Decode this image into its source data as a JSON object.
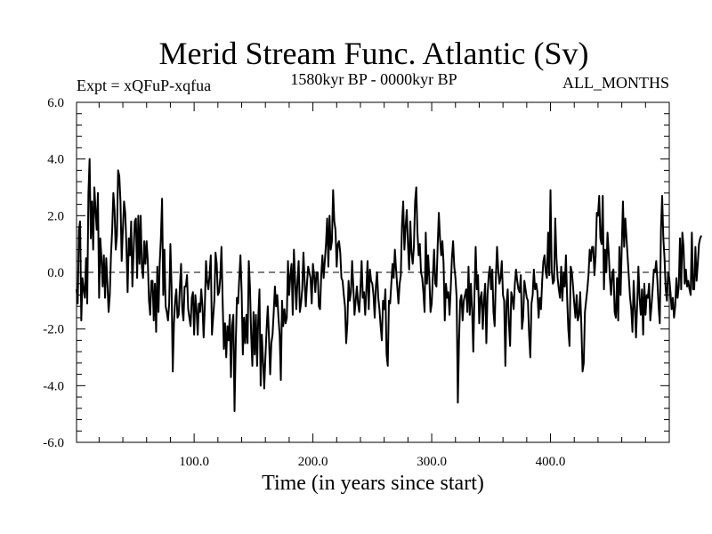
{
  "chart_data": {
    "type": "line",
    "title": "Merid Stream Func. Atlantic (Sv)",
    "subtitle": "1580kyr BP - 0000kyr BP",
    "experiment_label": "Expt = xQFuP-xqfua",
    "period_label": "ALL_MONTHS",
    "xlabel": "Time (in years since start)",
    "ylabel": "",
    "xlim": [
      1,
      500
    ],
    "ylim": [
      -6,
      6
    ],
    "x_tick_labels": [
      "100.0",
      "200.0",
      "300.0",
      "400.0"
    ],
    "x_ticks": [
      100,
      200,
      300,
      400
    ],
    "y_tick_labels": [
      "6.0",
      "4.0",
      "2.0",
      "0.0",
      "-2.0",
      "-4.0",
      "-6.0"
    ],
    "y_ticks": [
      6,
      4,
      2,
      0,
      -2,
      -4,
      -6
    ],
    "reference_line": 0,
    "series": [
      {
        "name": "Merid Stream Func. Atlantic",
        "x_start": 1,
        "x_step": 1,
        "values": [
          -0.6,
          -1.1,
          1.5,
          1.8,
          -1.7,
          -0.2,
          -0.6,
          -0.9,
          0.5,
          -1.1,
          2.8,
          4.0,
          1.2,
          2.5,
          0.8,
          3.0,
          2.2,
          1.5,
          2.8,
          -0.9,
          1.2,
          0.5,
          -0.5,
          0.6,
          -0.9,
          0.5,
          -0.4,
          -1.4,
          -0.8,
          0.6,
          1.5,
          2.8,
          2.2,
          0.8,
          1.3,
          3.6,
          3.4,
          2.5,
          0.4,
          1.5,
          2.5,
          2.1,
          0.9,
          -0.7,
          1.2,
          0.6,
          1.8,
          -0.5,
          0.7,
          1.8,
          1.9,
          -0.2,
          2.0,
          0.3,
          2.0,
          0.2,
          -0.2,
          1.1,
          0.3,
          1.1,
          0.4,
          -1.0,
          -1.5,
          -0.3,
          -0.3,
          -1.7,
          -0.4,
          -2.1,
          0.2,
          -1.4,
          0.3,
          1.2,
          2.6,
          -0.8,
          0.8,
          -1.2,
          -1.4,
          -1.7,
          -1.1,
          1.0,
          -0.5,
          -3.5,
          -1.8,
          -1.0,
          -0.6,
          -1.6,
          -1.5,
          -0.5,
          0.3,
          -1.3,
          -1.7,
          -0.5,
          -0.5,
          -0.1,
          -1.3,
          -1.6,
          -1.9,
          -0.9,
          -0.7,
          -2.2,
          -0.8,
          -1.3,
          -2.2,
          -1.1,
          -1.4,
          -0.6,
          -1.2,
          -2.3,
          -1.2,
          0.4,
          -0.3,
          -0.6,
          -0.1,
          0.6,
          -2.2,
          -1.6,
          -1.0,
          0.7,
          0.3,
          -0.8,
          -0.7,
          -0.2,
          0.9,
          -1.0,
          -2.7,
          -1.8,
          -3.0,
          -1.9,
          -2.4,
          -1.5,
          -3.7,
          -1.9,
          -1.5,
          -4.9,
          -2.6,
          -0.9,
          -1.1,
          -0.2,
          0.6,
          -0.7,
          -2.9,
          -1.6,
          -2.5,
          -1.5,
          -2.5,
          0.4,
          -0.5,
          -2.2,
          -3.3,
          -1.4,
          -2.9,
          -1.5,
          -3.3,
          -1.6,
          -0.6,
          -4.0,
          -2.2,
          -3.1,
          -4.1,
          -3.0,
          -2.0,
          -1.2,
          -2.3,
          -3.6,
          -2.5,
          -2.2,
          -1.4,
          -0.5,
          -1.2,
          -0.8,
          -1.6,
          -2.2,
          -3.8,
          -1.0,
          -1.9,
          -1.3,
          -1.8,
          -1.6,
          0.4,
          -0.8,
          -0.1,
          0.3,
          -1.5,
          0.8,
          -0.3,
          -1.3,
          -0.3,
          0.4,
          -1.4,
          -1.1,
          -0.6,
          0.7,
          -0.3,
          -1.2,
          -0.4,
          0.2,
          0.0,
          -0.2,
          -1.1,
          0.3,
          -0.1,
          -0.7,
          0.0,
          0.0,
          -1.2,
          -1.3,
          -0.1,
          0.6,
          -0.2,
          0.4,
          1.0,
          1.9,
          0.2,
          2.0,
          0.8,
          1.1,
          2.9,
          1.8,
          1.5,
          0.2,
          1.0,
          1.1,
          0.7,
          -0.2,
          -0.3,
          -0.8,
          -1.2,
          -2.5,
          -1.8,
          -0.3,
          -1.0,
          -0.7,
          0.4,
          -0.5,
          -1.5,
          -1.0,
          -0.5,
          -1.1,
          -1.4,
          -0.6,
          0.4,
          -0.9,
          -0.7,
          -1.5,
          -0.6,
          0.4,
          -1.3,
          0.1,
          -0.3,
          -0.4,
          -0.8,
          -1.6,
          -0.5,
          0.0,
          -0.9,
          -1.3,
          -1.9,
          -2.4,
          -1.0,
          -1.3,
          -0.6,
          -2.9,
          -3.3,
          -1.0,
          -1.1,
          -0.4,
          0.3,
          -0.2,
          0.8,
          0.1,
          -0.5,
          -1.1,
          -0.4,
          -0.1,
          1.7,
          2.5,
          0.8,
          1.6,
          2.2,
          1.0,
          0.1,
          1.8,
          0.7,
          0.3,
          0.9,
          2.5,
          3.0,
          1.4,
          0.6,
          1.0,
          0.0,
          -0.2,
          -0.7,
          -1.4,
          1.4,
          -0.4,
          0.6,
          -0.2,
          -1.4,
          -1.1,
          -0.1,
          0.8,
          -0.4,
          -0.5,
          0.9,
          2.1,
          1.2,
          0.6,
          1.1,
          0.3,
          -1.7,
          -0.4,
          -0.9,
          -0.7,
          -1.5,
          -0.6,
          0.5,
          1.1,
          0.2,
          -0.2,
          -0.9,
          -4.6,
          -2.4,
          -1.0,
          -0.8,
          -1.7,
          -1.0,
          -0.8,
          -0.6,
          -1.4,
          0.2,
          -1.5,
          -0.4,
          -1.3,
          -2.8,
          -0.8,
          0.9,
          -0.6,
          -0.1,
          -1.8,
          -0.9,
          -0.7,
          -2.0,
          -1.0,
          -0.4,
          -2.5,
          -0.8,
          -0.1,
          0.2,
          -0.6,
          0.1,
          -1.4,
          -1.9,
          -0.2,
          0.9,
          0.1,
          -0.4,
          -0.2,
          0.4,
          -0.8,
          -1.0,
          -3.3,
          -1.1,
          -0.6,
          -1.8,
          -2.6,
          -0.7,
          -0.9,
          -1.3,
          -0.4,
          0.1,
          -0.3,
          -0.6,
          -0.7,
          -0.1,
          -2.0,
          -1.6,
          -0.3,
          -0.6,
          -0.9,
          -1.0,
          -2.2,
          -3.0,
          -1.1,
          -0.8,
          0.1,
          -0.6,
          -0.4,
          -0.7,
          -1.6,
          -0.9,
          -1.3,
          -0.3,
          0.4,
          0.6,
          0.0,
          -0.2,
          1.4,
          -0.1,
          2.9,
          0.1,
          -0.4,
          -0.3,
          1.9,
          0.5,
          -0.2,
          -0.6,
          -0.9,
          0.2,
          -1.0,
          0.0,
          -0.5,
          0.6,
          -0.9,
          -2.0,
          -2.6,
          0.2,
          0.0,
          -0.5,
          -1.1,
          -1.6,
          -0.8,
          -1.7,
          -1.5,
          -0.7,
          -1.9,
          -3.5,
          -3.2,
          -1.4,
          -1.0,
          -0.6,
          -0.1,
          0.8,
          0.4,
          0.9,
          0.9,
          -0.1,
          0.6,
          2.1,
          2.0,
          2.7,
          1.2,
          1.0,
          2.7,
          -0.6,
          0.8,
          0.0,
          1.4,
          0.7,
          -0.2,
          -0.8,
          0.0,
          0.1,
          -1.4,
          -1.6,
          -0.2,
          -1.7,
          0.9,
          -0.8,
          0.9,
          2.5,
          0.9,
          1.9,
          1.2,
          0.5,
          -0.2,
          -0.9,
          -1.3,
          -2.1,
          -0.3,
          -1.2,
          -2.3,
          -1.1,
          0.2,
          -0.9,
          -1.5,
          -0.6,
          -2.2,
          -0.4,
          -1.5,
          -0.8,
          -0.9,
          -0.4,
          -1.7,
          -1.2,
          -0.6,
          0.1,
          0.0,
          0.4,
          -0.3,
          -1.2,
          -1.8,
          1.5,
          2.7,
          1.2,
          0.5,
          -0.6,
          -1.0,
          0.0,
          -0.2,
          -0.7,
          -1.3,
          -0.9,
          -1.6,
          -1.2,
          -0.2,
          -0.9,
          -0.5,
          1.2,
          -0.6,
          1.4,
          0.9,
          -0.4,
          0.1,
          -0.5,
          -0.3,
          -0.6,
          -0.8,
          1.4,
          -0.6,
          -0.6,
          0.9,
          -0.3,
          0.3,
          1.0,
          1.2,
          1.3
        ]
      }
    ]
  }
}
